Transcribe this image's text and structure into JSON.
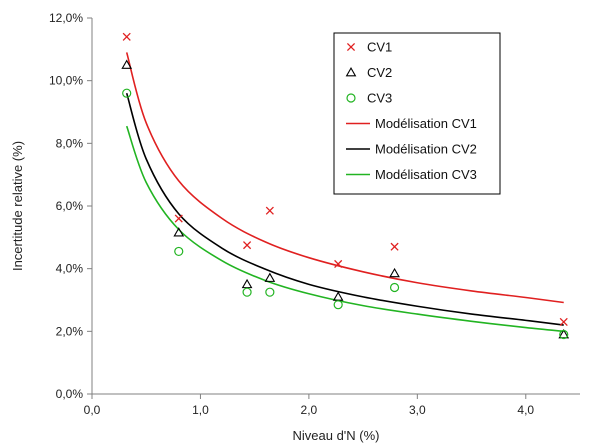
{
  "chart_data": {
    "type": "scatter",
    "xlabel": "Niveau d'N (%)",
    "ylabel": "Incertitude relative (%)",
    "xlim": [
      0.0,
      4.5
    ],
    "ylim": [
      0.0,
      12.0
    ],
    "x_ticks": [
      "0,0",
      "1,0",
      "2,0",
      "3,0",
      "4,0"
    ],
    "y_ticks": [
      "0,0%",
      "2,0%",
      "4,0%",
      "6,0%",
      "8,0%",
      "10,0%",
      "12,0%"
    ],
    "grid": false,
    "legend_position": "top-right",
    "series": [
      {
        "name": "CV1",
        "marker": "x",
        "color": "#e02020",
        "points": [
          {
            "x": 0.32,
            "y": 11.4
          },
          {
            "x": 0.8,
            "y": 5.6
          },
          {
            "x": 1.43,
            "y": 4.75
          },
          {
            "x": 1.64,
            "y": 5.85
          },
          {
            "x": 2.27,
            "y": 4.15
          },
          {
            "x": 2.79,
            "y": 4.7
          },
          {
            "x": 4.35,
            "y": 2.3
          }
        ]
      },
      {
        "name": "CV2",
        "marker": "triangle",
        "color": "#000000",
        "points": [
          {
            "x": 0.32,
            "y": 10.5
          },
          {
            "x": 0.8,
            "y": 5.15
          },
          {
            "x": 1.43,
            "y": 3.5
          },
          {
            "x": 1.64,
            "y": 3.7
          },
          {
            "x": 2.27,
            "y": 3.1
          },
          {
            "x": 2.79,
            "y": 3.85
          },
          {
            "x": 4.35,
            "y": 1.9
          }
        ]
      },
      {
        "name": "CV3",
        "marker": "circle",
        "color": "#22b422",
        "points": [
          {
            "x": 0.32,
            "y": 9.6
          },
          {
            "x": 0.8,
            "y": 4.55
          },
          {
            "x": 1.43,
            "y": 3.25
          },
          {
            "x": 1.64,
            "y": 3.25
          },
          {
            "x": 2.27,
            "y": 2.85
          },
          {
            "x": 2.79,
            "y": 3.4
          },
          {
            "x": 4.35,
            "y": 1.9
          }
        ]
      },
      {
        "name": "Modélisation CV1",
        "marker": "line",
        "color": "#e02020",
        "points": [
          {
            "x": 0.32,
            "y": 10.9
          },
          {
            "x": 0.5,
            "y": 8.65
          },
          {
            "x": 0.8,
            "y": 6.8
          },
          {
            "x": 1.2,
            "y": 5.6
          },
          {
            "x": 1.6,
            "y": 4.85
          },
          {
            "x": 2.0,
            "y": 4.35
          },
          {
            "x": 2.5,
            "y": 3.9
          },
          {
            "x": 3.0,
            "y": 3.55
          },
          {
            "x": 3.5,
            "y": 3.29
          },
          {
            "x": 4.0,
            "y": 3.08
          },
          {
            "x": 4.35,
            "y": 2.92
          }
        ]
      },
      {
        "name": "Modélisation CV2",
        "marker": "line",
        "color": "#000000",
        "points": [
          {
            "x": 0.32,
            "y": 9.6
          },
          {
            "x": 0.5,
            "y": 7.5
          },
          {
            "x": 0.8,
            "y": 5.75
          },
          {
            "x": 1.2,
            "y": 4.65
          },
          {
            "x": 1.6,
            "y": 3.98
          },
          {
            "x": 2.0,
            "y": 3.5
          },
          {
            "x": 2.5,
            "y": 3.1
          },
          {
            "x": 3.0,
            "y": 2.8
          },
          {
            "x": 3.5,
            "y": 2.55
          },
          {
            "x": 4.0,
            "y": 2.35
          },
          {
            "x": 4.35,
            "y": 2.2
          }
        ]
      },
      {
        "name": "Modélisation CV3",
        "marker": "line",
        "color": "#22b422",
        "points": [
          {
            "x": 0.32,
            "y": 8.55
          },
          {
            "x": 0.5,
            "y": 6.75
          },
          {
            "x": 0.8,
            "y": 5.25
          },
          {
            "x": 1.2,
            "y": 4.25
          },
          {
            "x": 1.6,
            "y": 3.62
          },
          {
            "x": 2.0,
            "y": 3.2
          },
          {
            "x": 2.5,
            "y": 2.82
          },
          {
            "x": 3.0,
            "y": 2.55
          },
          {
            "x": 3.5,
            "y": 2.32
          },
          {
            "x": 4.0,
            "y": 2.12
          },
          {
            "x": 4.35,
            "y": 2.0
          }
        ]
      }
    ]
  }
}
